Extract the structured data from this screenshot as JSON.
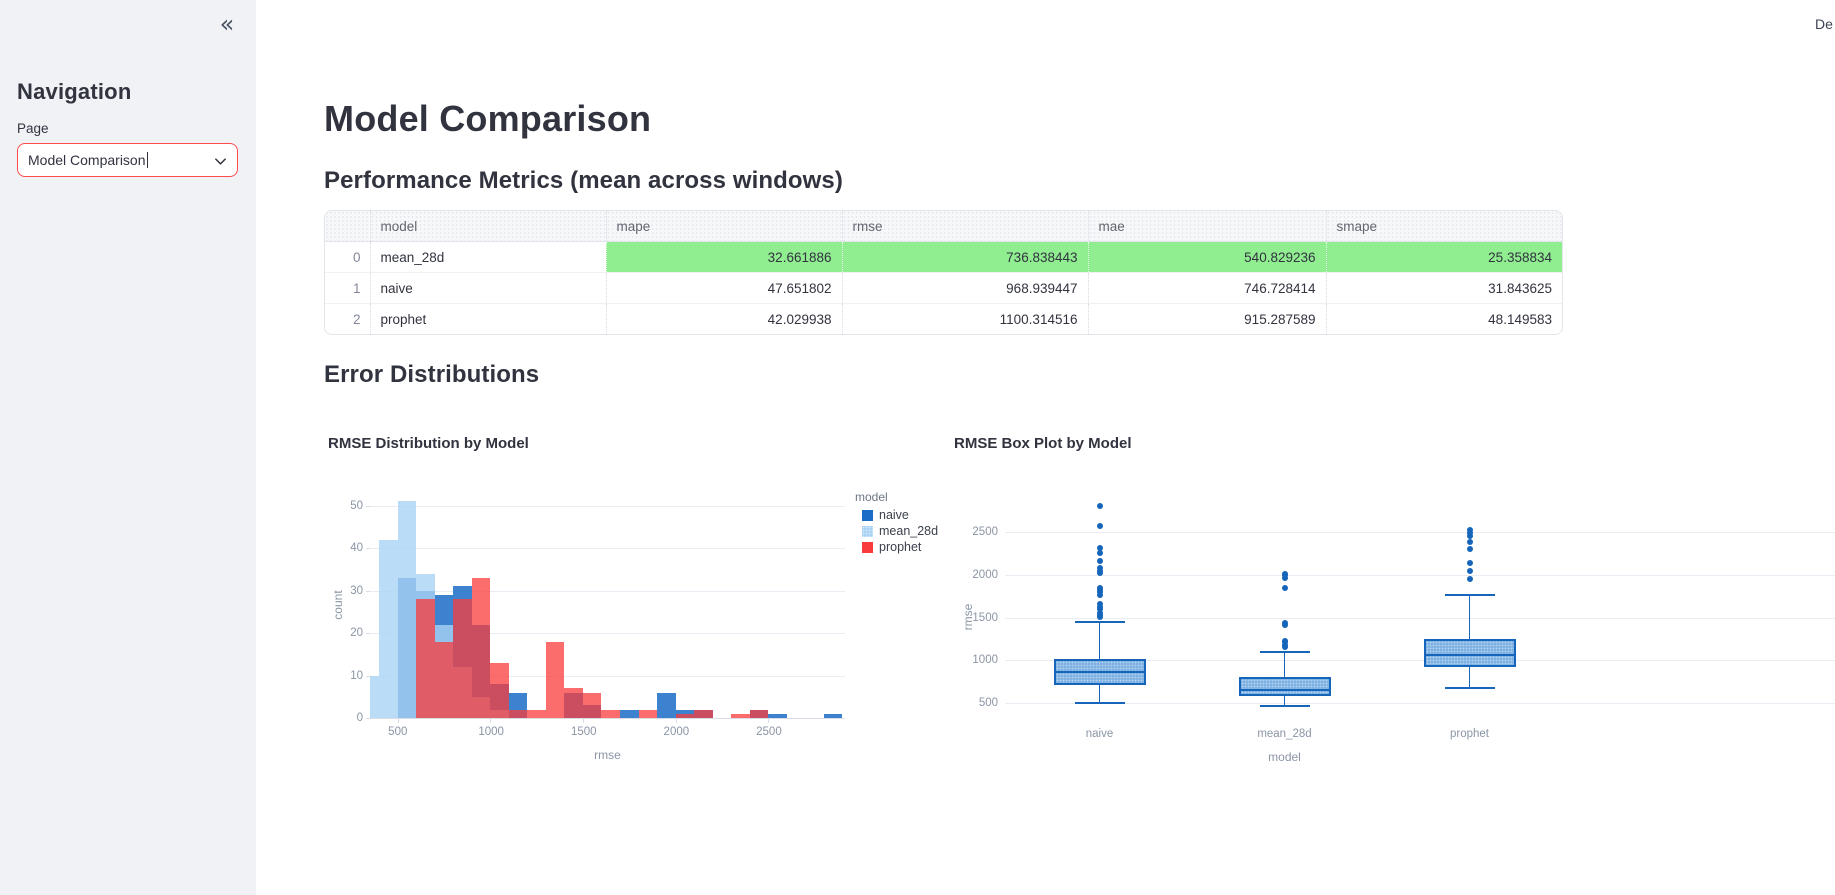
{
  "sidebar": {
    "collapse_icon": "«",
    "title": "Navigation",
    "page_label": "Page",
    "select": {
      "value": "Model Comparison"
    }
  },
  "topbar": {
    "deploy_text": "De"
  },
  "main": {
    "title": "Model Comparison",
    "metrics_heading": "Performance Metrics (mean across windows)",
    "distributions_heading": "Error Distributions"
  },
  "table": {
    "columns": [
      "",
      "model",
      "mape",
      "rmse",
      "mae",
      "smape"
    ],
    "highlight_color": "#90EE90",
    "rows": [
      {
        "index": "0",
        "model": "mean_28d",
        "values": [
          "32.661886",
          "736.838443",
          "540.829236",
          "25.358834"
        ],
        "highlight": true
      },
      {
        "index": "1",
        "model": "naive",
        "values": [
          "47.651802",
          "968.939447",
          "746.728414",
          "31.843625"
        ],
        "highlight": false
      },
      {
        "index": "2",
        "model": "prophet",
        "values": [
          "42.029938",
          "1100.314516",
          "915.287589",
          "48.149583"
        ],
        "highlight": false
      }
    ]
  },
  "chart_data": [
    {
      "type": "bar",
      "subtype": "layered-histogram",
      "title": "RMSE Distribution by Model",
      "xlabel": "rmse",
      "ylabel": "count",
      "x_ticks": [
        500,
        1000,
        1500,
        2000,
        2500
      ],
      "y_ticks": [
        0,
        10,
        20,
        30,
        40,
        50
      ],
      "x_range": [
        350,
        2915
      ],
      "y_range": [
        0,
        53
      ],
      "bin_width": 100,
      "legend_title": "model",
      "legend_position": "right",
      "grid": true,
      "series": [
        {
          "name": "naive",
          "color": "#1a6cc5",
          "opacity": 0.85,
          "bins": [
            {
              "x": 500,
              "n": 33
            },
            {
              "x": 600,
              "n": 30
            },
            {
              "x": 700,
              "n": 29
            },
            {
              "x": 800,
              "n": 31
            },
            {
              "x": 900,
              "n": 22
            },
            {
              "x": 1000,
              "n": 8
            },
            {
              "x": 1100,
              "n": 6
            },
            {
              "x": 1400,
              "n": 6
            },
            {
              "x": 1500,
              "n": 3
            },
            {
              "x": 1700,
              "n": 2
            },
            {
              "x": 1900,
              "n": 6
            },
            {
              "x": 2000,
              "n": 2
            },
            {
              "x": 2100,
              "n": 2
            },
            {
              "x": 2400,
              "n": 2
            },
            {
              "x": 2500,
              "n": 1
            },
            {
              "x": 2800,
              "n": 1
            }
          ]
        },
        {
          "name": "mean_28d",
          "color": "#a9d3f4",
          "opacity": 0.8,
          "bins": [
            {
              "x": 300,
              "n": 10
            },
            {
              "x": 400,
              "n": 42
            },
            {
              "x": 500,
              "n": 51
            },
            {
              "x": 600,
              "n": 34
            },
            {
              "x": 700,
              "n": 22
            },
            {
              "x": 800,
              "n": 12
            },
            {
              "x": 900,
              "n": 5
            },
            {
              "x": 1000,
              "n": 2
            }
          ]
        },
        {
          "name": "prophet",
          "color": "#fa3b3b",
          "opacity": 0.75,
          "bins": [
            {
              "x": 600,
              "n": 28
            },
            {
              "x": 700,
              "n": 18
            },
            {
              "x": 800,
              "n": 28
            },
            {
              "x": 900,
              "n": 33
            },
            {
              "x": 1000,
              "n": 13
            },
            {
              "x": 1100,
              "n": 2
            },
            {
              "x": 1200,
              "n": 2
            },
            {
              "x": 1300,
              "n": 18
            },
            {
              "x": 1400,
              "n": 7
            },
            {
              "x": 1500,
              "n": 6
            },
            {
              "x": 1600,
              "n": 2
            },
            {
              "x": 1800,
              "n": 2
            },
            {
              "x": 2000,
              "n": 1
            },
            {
              "x": 2100,
              "n": 2
            },
            {
              "x": 2300,
              "n": 1
            },
            {
              "x": 2400,
              "n": 2
            }
          ]
        }
      ]
    },
    {
      "type": "boxplot",
      "title": "RMSE Box Plot by Model",
      "xlabel": "model",
      "ylabel": "rmse",
      "y_ticks": [
        500,
        1000,
        1500,
        2000,
        2500
      ],
      "y_range": [
        350,
        2950
      ],
      "grid": true,
      "categories": [
        "naive",
        "mean_28d",
        "prophet"
      ],
      "box_color": "#1565ba",
      "box_fill": "#7fb2e2",
      "boxes": [
        {
          "model": "naive",
          "whisker_low": 500,
          "q1": 715,
          "median": 865,
          "q3": 1020,
          "whisker_high": 1450,
          "outliers": [
            1508,
            1527,
            1549,
            1597,
            1622,
            1660,
            1762,
            1800,
            1820,
            1845,
            2023,
            2049,
            2081,
            2164,
            2259,
            2313,
            2576,
            2810
          ]
        },
        {
          "model": "mean_28d",
          "whisker_low": 465,
          "q1": 585,
          "median": 655,
          "q3": 805,
          "whisker_high": 1100,
          "outliers": [
            1155,
            1185,
            1210,
            1225,
            1410,
            1432,
            1852,
            1962,
            1993,
            2010
          ]
        },
        {
          "model": "prophet",
          "whisker_low": 675,
          "q1": 925,
          "median": 1060,
          "q3": 1255,
          "whisker_high": 1770,
          "outliers": [
            1950,
            2045,
            2140,
            2300,
            2385,
            2450,
            2490,
            2520
          ]
        }
      ]
    }
  ]
}
